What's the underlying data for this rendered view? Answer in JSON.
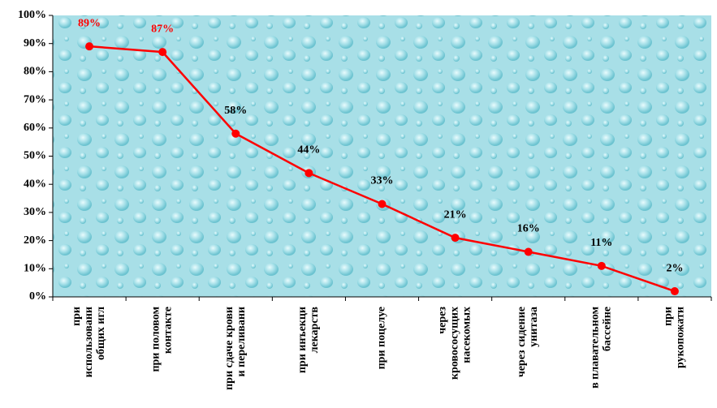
{
  "chart_data": {
    "type": "line",
    "categories": [
      "при\nиспользовани\nобщих игл",
      "при половом\nконтакте",
      "при сдаче крови\nи переливани",
      "при инъекци\nлекарств",
      "при поцелуе",
      "через\nкровососущих\nнасекомых",
      "через сидение\nунитаза",
      "в плавательном\nбассейне",
      "при\nрукопожати"
    ],
    "values": [
      89,
      87,
      58,
      44,
      33,
      21,
      16,
      11,
      2
    ],
    "value_labels": [
      "89%",
      "87%",
      "58%",
      "44%",
      "33%",
      "21%",
      "16%",
      "11%",
      "2%"
    ],
    "value_label_colors": [
      "#ff0000",
      "#ff0000",
      "#000000",
      "#000000",
      "#000000",
      "#000000",
      "#000000",
      "#000000",
      "#000000"
    ],
    "color": "#ff0000",
    "ylim": [
      0,
      100
    ],
    "yticks": [
      {
        "value": 0,
        "label": "0%"
      },
      {
        "value": 10,
        "label": "10%"
      },
      {
        "value": 20,
        "label": "20%"
      },
      {
        "value": 30,
        "label": "30%"
      },
      {
        "value": 40,
        "label": "40%"
      },
      {
        "value": 50,
        "label": "50%"
      },
      {
        "value": 60,
        "label": "60%"
      },
      {
        "value": 70,
        "label": "70%"
      },
      {
        "value": 80,
        "label": "80%"
      },
      {
        "value": 90,
        "label": "90%"
      },
      {
        "value": 100,
        "label": "100%"
      }
    ]
  }
}
